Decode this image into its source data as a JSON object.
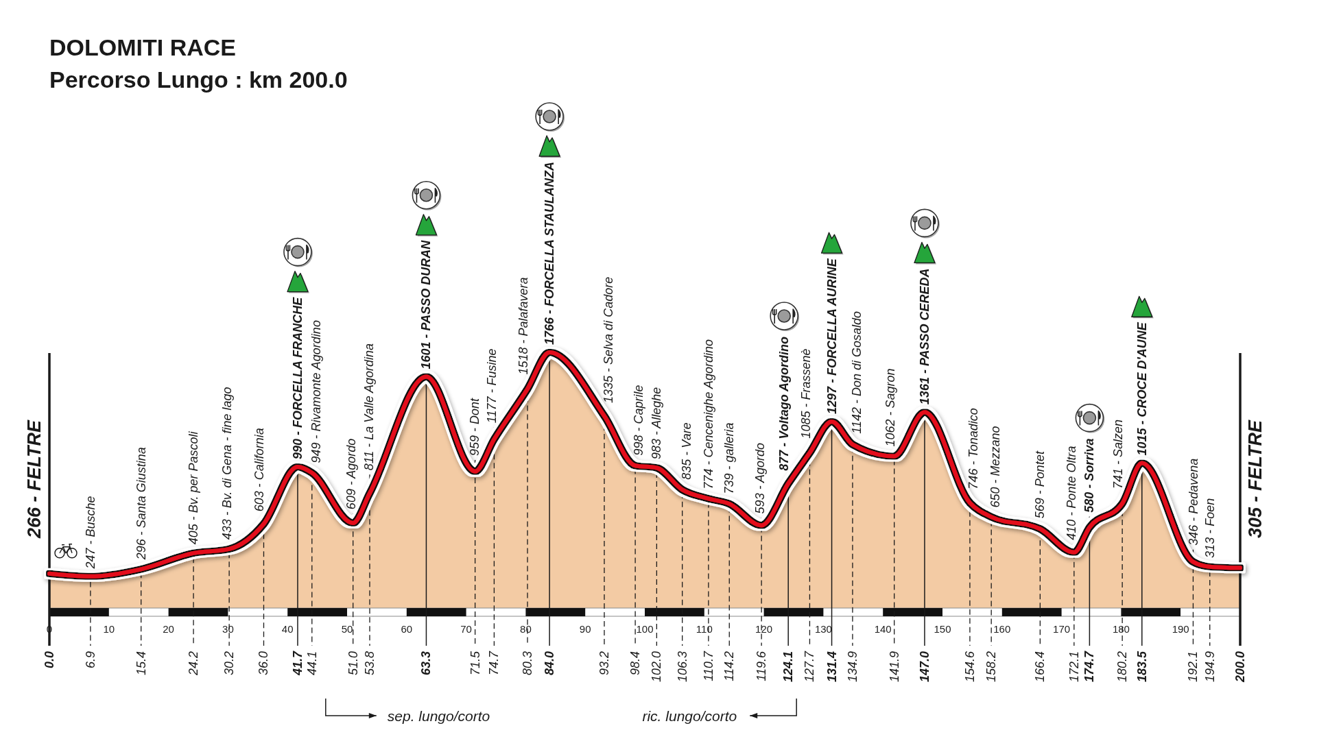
{
  "chart_data": {
    "type": "area",
    "title": "DOLOMITI RACE",
    "subtitle": "Percorso Lungo : km 200.0",
    "xlim": [
      0,
      200
    ],
    "xticks": [
      0,
      10,
      20,
      30,
      40,
      50,
      60,
      70,
      80,
      90,
      100,
      110,
      120,
      130,
      140,
      150,
      160,
      170,
      180,
      190
    ],
    "x2lim": [
      0,
      200
    ],
    "x2ticks": [
      {
        "value": 0,
        "label": "0.0"
      },
      6.9,
      15.4,
      24.2,
      30.2,
      {
        "value": 36,
        "label": "36.0"
      },
      41.7,
      44.1,
      {
        "value": 51,
        "label": "51.0"
      },
      53.8,
      63.3,
      71.5,
      74.7,
      80.3,
      {
        "value": 84,
        "label": "84.0"
      },
      93.2,
      98.4,
      {
        "value": 102,
        "label": "102.0"
      },
      106.3,
      110.7,
      114.2,
      119.6,
      124.1,
      127.7,
      131.4,
      134.9,
      141.9,
      {
        "value": 147,
        "label": "147.0"
      },
      154.6,
      158.2,
      166.4,
      172.1,
      174.7,
      180.2,
      183.5,
      192.1,
      194.9,
      {
        "value": 200,
        "label": "200.0"
      }
    ],
    "series": [
      {
        "color": "#f3cba4",
        "x": [
          0,
          6.9,
          15.4,
          24.2,
          30.2,
          36,
          41.7,
          44.1,
          51,
          53.8,
          63.3,
          71.5,
          74.7,
          80.3,
          84,
          93.2,
          98.4,
          102,
          106.3,
          110.7,
          114.2,
          119.6,
          124.1,
          127.7,
          131.4,
          134.9,
          141.9,
          147,
          154.6,
          158.2,
          166.4,
          172.1,
          174.7,
          180.2,
          183.5,
          192.1,
          194.9,
          200
        ],
        "values": [
          266,
          247,
          296,
          405,
          433,
          603,
          990,
          949,
          609,
          811,
          1601,
          959,
          1177,
          1518,
          1766,
          1335,
          998,
          983,
          835,
          774,
          739,
          593,
          877,
          1085,
          1297,
          1142,
          1062,
          1361,
          746,
          650,
          569,
          410,
          580,
          741,
          1015,
          346,
          313,
          305
        ],
        "value_labels": [
          "266 - FELTRE",
          "247 - Busche",
          "296 - Santa Giustina",
          "405 - Bv. per Pascoli",
          "433 - Bv. di Gena - fine lago",
          "603 - California",
          "990 - FORCELLA FRANCHE",
          "949 - Rivamonte Agordino",
          "609 - Agordo",
          "811 - La Valle Agordina",
          "1601 - PASSO DURAN",
          "959 - Dont",
          "1177 - Fusine",
          "1518 - Palafavera",
          "1766 - FORCELLA STAULANZA",
          "1335 - Selva di Cadore",
          "998 - Caprile",
          "983 - Alleghe",
          "835 - Vare",
          "774 - Cencenighe Agordino",
          "739 - galleria",
          "593 - Agordo",
          "877 - Voltago Agordino",
          "1085 - Frassenè",
          "1297 - FORCELLA AURINE",
          "1142 - Don di Gosaldo",
          "1062 - Sagron",
          "1361 - PASSO CEREDA",
          "746 - Tonadico",
          "650 - Mezzano",
          "569 - Pontet",
          "410 - Ponte Oltra",
          "580 - Sorriva",
          "741 - Salzen",
          "1015 - CROCE D'AUNE",
          "346 - Pedavena",
          "313 - Foen",
          "305 - FELTRE"
        ]
      }
    ],
    "ref_lines": [
      {
        "axis": "x",
        "value": 0,
        "line_style": "solid"
      },
      {
        "axis": "x",
        "value": 6.9,
        "line_style": "dashed"
      },
      {
        "axis": "x",
        "value": 15.4,
        "line_style": "dashed"
      },
      {
        "axis": "x",
        "value": 24.2,
        "line_style": "dashed"
      },
      {
        "axis": "x",
        "value": 30.2,
        "line_style": "dashed"
      },
      {
        "axis": "x",
        "value": 36,
        "line_style": "dashed"
      },
      {
        "axis": "x",
        "value": 41.7,
        "line_style": "solid"
      },
      {
        "axis": "x",
        "value": 44.1,
        "line_style": "dashed"
      },
      {
        "axis": "x",
        "value": 51,
        "line_style": "dashed"
      },
      {
        "axis": "x",
        "value": 53.8,
        "line_style": "dashed"
      },
      {
        "axis": "x",
        "value": 63.3,
        "line_style": "solid"
      },
      {
        "axis": "x",
        "value": 71.5,
        "line_style": "dashed"
      },
      {
        "axis": "x",
        "value": 74.7,
        "line_style": "dashed"
      },
      {
        "axis": "x",
        "value": 80.3,
        "line_style": "dashed"
      },
      {
        "axis": "x",
        "value": 84,
        "line_style": "solid"
      },
      {
        "axis": "x",
        "value": 93.2,
        "line_style": "dashed"
      },
      {
        "axis": "x",
        "value": 98.4,
        "line_style": "dashed"
      },
      {
        "axis": "x",
        "value": 102,
        "line_style": "dashed"
      },
      {
        "axis": "x",
        "value": 106.3,
        "line_style": "dashed"
      },
      {
        "axis": "x",
        "value": 110.7,
        "line_style": "dashed"
      },
      {
        "axis": "x",
        "value": 114.2,
        "line_style": "dashed"
      },
      {
        "axis": "x",
        "value": 119.6,
        "line_style": "dashed"
      },
      {
        "axis": "x",
        "value": 124.1,
        "line_style": "solid"
      },
      {
        "axis": "x",
        "value": 127.7,
        "line_style": "dashed"
      },
      {
        "axis": "x",
        "value": 131.4,
        "line_style": "solid"
      },
      {
        "axis": "x",
        "value": 134.9,
        "line_style": "dashed"
      },
      {
        "axis": "x",
        "value": 141.9,
        "line_style": "dashed"
      },
      {
        "axis": "x",
        "value": 147,
        "line_style": "solid"
      },
      {
        "axis": "x",
        "value": 154.6,
        "line_style": "dashed"
      },
      {
        "axis": "x",
        "value": 158.2,
        "line_style": "dashed"
      },
      {
        "axis": "x",
        "value": 166.4,
        "line_style": "dashed"
      },
      {
        "axis": "x",
        "value": 172.1,
        "line_style": "dashed"
      },
      {
        "axis": "x",
        "value": 174.7,
        "line_style": "solid"
      },
      {
        "axis": "x",
        "value": 180.2,
        "line_style": "dashed"
      },
      {
        "axis": "x",
        "value": 183.5,
        "line_style": "solid"
      },
      {
        "axis": "x",
        "value": 192.1,
        "line_style": "dashed"
      },
      {
        "axis": "x",
        "value": 194.9,
        "line_style": "dashed"
      },
      {
        "axis": "x",
        "value": 200,
        "line_style": "solid"
      }
    ],
    "annotations": [
      "sep. lungo/corto",
      "ric. lungo/corto"
    ]
  }
}
